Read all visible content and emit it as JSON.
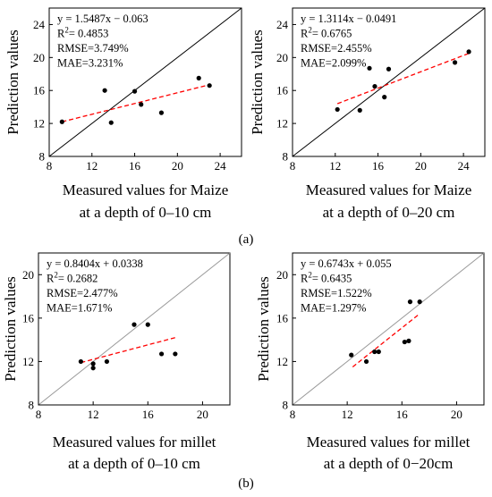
{
  "figure": {
    "label_a": "(a)",
    "label_b": "(b)"
  },
  "chart_data": [
    {
      "type": "scatter",
      "ylabel": "Prediction values",
      "xlabel_line1": "Measured values for Maize",
      "xlabel_line2": "at a depth of 0–10 cm",
      "xlim": [
        8,
        26
      ],
      "ylim": [
        8,
        26
      ],
      "xticks": [
        8,
        12,
        16,
        20,
        24
      ],
      "yticks": [
        8,
        12,
        16,
        20,
        24
      ],
      "equation": "y = 1.5487x − 0.063",
      "r2_label": "R",
      "r2_value": "= 0.4853",
      "rmse": "RMSE=3.749%",
      "mae": "MAE=3.231%",
      "reference_line": "1:1",
      "reference_color": "#000000",
      "fit_line": {
        "x": [
          9.2,
          23.0
        ],
        "y": [
          12.2,
          16.7
        ],
        "color": "#ff0000",
        "style": "dashed"
      },
      "points": [
        {
          "x": 9.2,
          "y": 12.2
        },
        {
          "x": 13.2,
          "y": 16.0
        },
        {
          "x": 13.8,
          "y": 12.1
        },
        {
          "x": 16.0,
          "y": 15.9
        },
        {
          "x": 16.6,
          "y": 14.3
        },
        {
          "x": 18.5,
          "y": 13.3
        },
        {
          "x": 22.0,
          "y": 17.5
        },
        {
          "x": 23.0,
          "y": 16.6
        }
      ]
    },
    {
      "type": "scatter",
      "ylabel": "Prediction values",
      "xlabel_line1": "Measured values for Maize",
      "xlabel_line2": "at a depth of 0–20 cm",
      "xlim": [
        8,
        26
      ],
      "ylim": [
        8,
        26
      ],
      "xticks": [
        8,
        12,
        16,
        20,
        24
      ],
      "yticks": [
        8,
        12,
        16,
        20,
        24
      ],
      "equation": "y = 1.3114x − 0.0491",
      "r2_label": "R",
      "r2_value": "= 0.6765",
      "rmse": "RMSE=2.455%",
      "mae": "MAE=2.099%",
      "reference_line": "1:1",
      "reference_color": "#000000",
      "fit_line": {
        "x": [
          12.2,
          24.5
        ],
        "y": [
          14.4,
          20.5
        ],
        "color": "#ff0000",
        "style": "dashed"
      },
      "points": [
        {
          "x": 12.2,
          "y": 13.7
        },
        {
          "x": 14.3,
          "y": 13.6
        },
        {
          "x": 15.2,
          "y": 18.7
        },
        {
          "x": 15.7,
          "y": 16.5
        },
        {
          "x": 16.6,
          "y": 15.2
        },
        {
          "x": 17.0,
          "y": 18.6
        },
        {
          "x": 23.2,
          "y": 19.4
        },
        {
          "x": 24.5,
          "y": 20.7
        }
      ]
    },
    {
      "type": "scatter",
      "ylabel": "Prediction values",
      "xlabel_line1": "Measured values for millet",
      "xlabel_line2": "at a depth of 0–10 cm",
      "xlim": [
        8,
        22
      ],
      "ylim": [
        8,
        22
      ],
      "xticks": [
        8,
        12,
        16,
        20
      ],
      "yticks": [
        8,
        12,
        16,
        20
      ],
      "equation": "y = 0.8404x + 0.0338",
      "r2_label": "R",
      "r2_value": "= 0.2682",
      "rmse": "RMSE=2.477%",
      "mae": "MAE=1.671%",
      "reference_line": "1:1",
      "reference_color": "#999999",
      "fit_line": {
        "x": [
          11.1,
          18.0
        ],
        "y": [
          11.9,
          14.2
        ],
        "color": "#ff0000",
        "style": "dashed"
      },
      "points": [
        {
          "x": 11.1,
          "y": 12.0
        },
        {
          "x": 12.0,
          "y": 11.4
        },
        {
          "x": 12.0,
          "y": 11.8
        },
        {
          "x": 13.0,
          "y": 12.0
        },
        {
          "x": 15.0,
          "y": 15.4
        },
        {
          "x": 16.0,
          "y": 15.4
        },
        {
          "x": 17.0,
          "y": 12.7
        },
        {
          "x": 18.0,
          "y": 12.7
        }
      ]
    },
    {
      "type": "scatter",
      "ylabel": "Prediction values",
      "xlabel_line1": "Measured values for millet",
      "xlabel_line2": "at a depth of 0−20cm",
      "xlim": [
        8,
        22
      ],
      "ylim": [
        8,
        22
      ],
      "xticks": [
        8,
        12,
        16,
        20
      ],
      "yticks": [
        8,
        12,
        16,
        20
      ],
      "equation": "y = 0.6743x + 0.055",
      "r2_label": "R",
      "r2_value": "= 0.6435",
      "rmse": "RMSE=1.522%",
      "mae": "MAE=1.297%",
      "reference_line": "1:1",
      "reference_color": "#999999",
      "fit_line": {
        "x": [
          12.4,
          17.3
        ],
        "y": [
          11.5,
          16.4
        ],
        "color": "#ff0000",
        "style": "dashed"
      },
      "points": [
        {
          "x": 12.3,
          "y": 12.6
        },
        {
          "x": 13.4,
          "y": 12.0
        },
        {
          "x": 14.0,
          "y": 12.9
        },
        {
          "x": 14.3,
          "y": 12.9
        },
        {
          "x": 16.2,
          "y": 13.8
        },
        {
          "x": 16.5,
          "y": 13.9
        },
        {
          "x": 16.6,
          "y": 17.5
        },
        {
          "x": 17.3,
          "y": 17.5
        }
      ]
    }
  ]
}
